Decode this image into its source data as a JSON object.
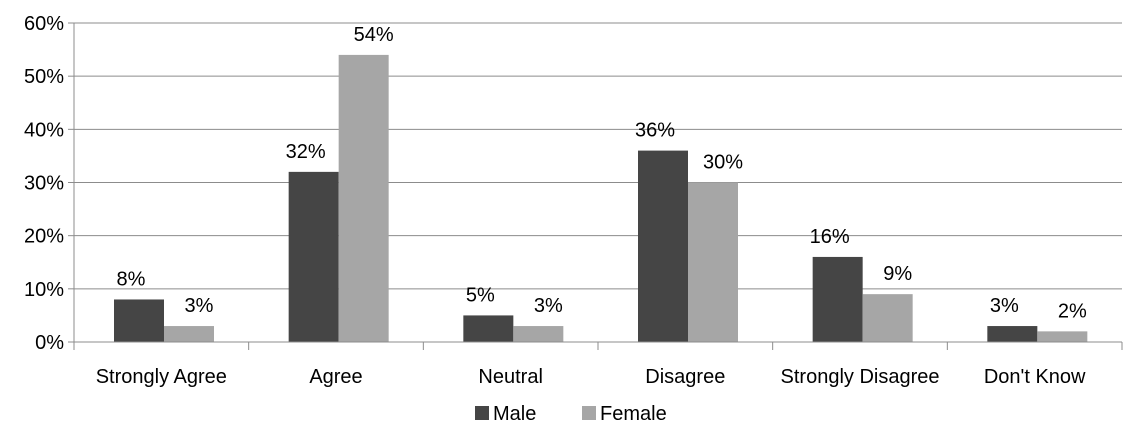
{
  "chart_data": {
    "type": "bar",
    "categories": [
      "Strongly Agree",
      "Agree",
      "Neutral",
      "Disagree",
      "Strongly Disagree",
      "Don't Know"
    ],
    "series": [
      {
        "name": "Male",
        "values": [
          8,
          32,
          5,
          36,
          16,
          3
        ],
        "labels": [
          "8%",
          "32%",
          "5%",
          "36%",
          "16%",
          "3%"
        ],
        "color": "#454545"
      },
      {
        "name": "Female",
        "values": [
          3,
          54,
          3,
          30,
          9,
          2
        ],
        "labels": [
          "3%",
          "54%",
          "3%",
          "30%",
          "9%",
          "2%"
        ],
        "color": "#a6a6a6"
      }
    ],
    "ylim": [
      0,
      60
    ],
    "yticks": [
      0,
      10,
      20,
      30,
      40,
      50,
      60
    ],
    "ytick_labels": [
      "0%",
      "10%",
      "20%",
      "30%",
      "40%",
      "50%",
      "60%"
    ],
    "grid": true,
    "legend": "bottom-center",
    "title": "",
    "xlabel": "",
    "ylabel": ""
  }
}
